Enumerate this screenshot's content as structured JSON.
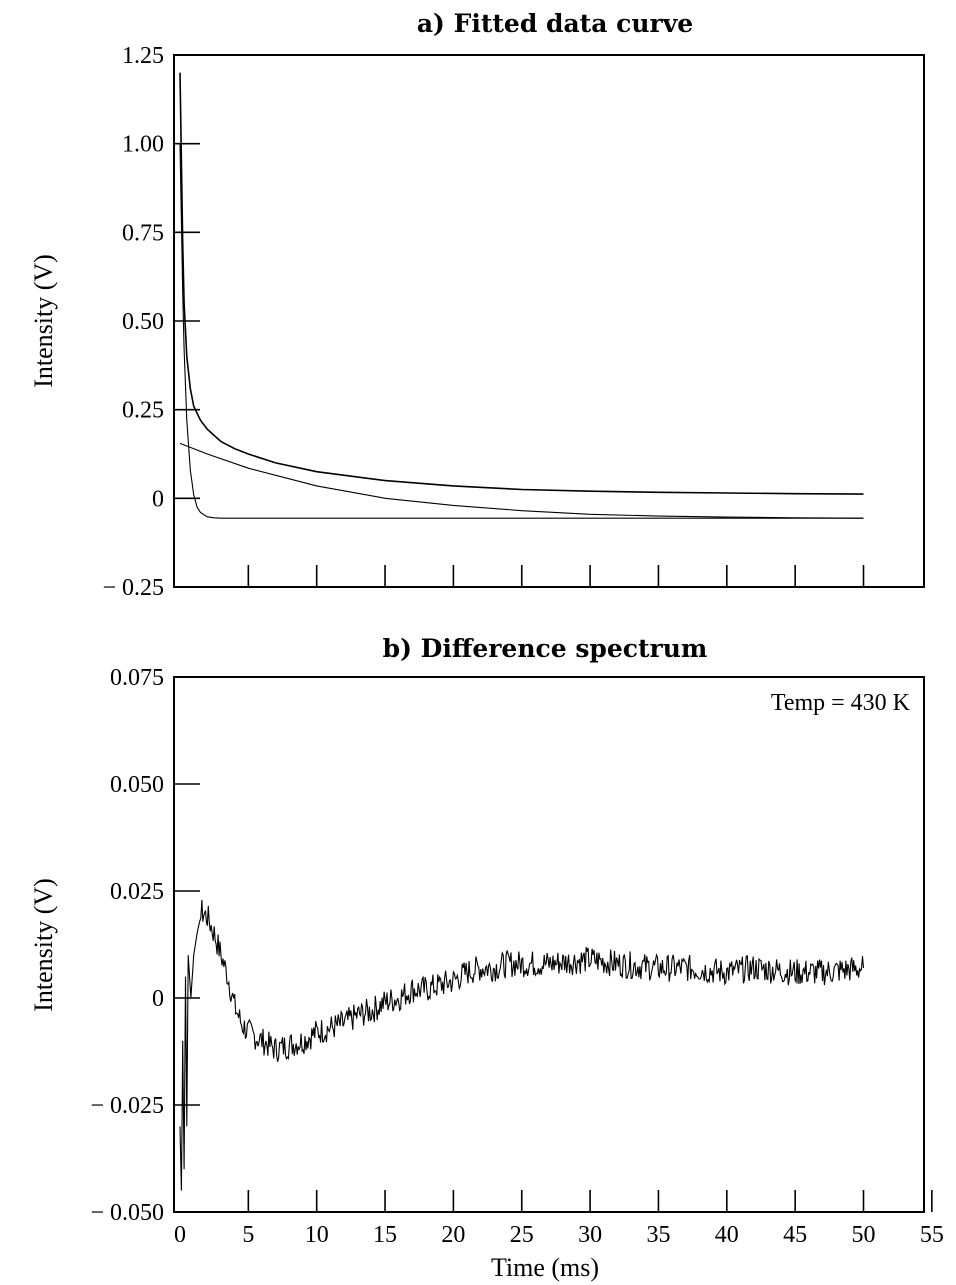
{
  "chart_data": [
    {
      "type": "line",
      "title": "a)  Fitted data curve",
      "xlabel": "",
      "ylabel": "Intensity (V)",
      "xlim": [
        0,
        55
      ],
      "ylim": [
        -0.25,
        1.25
      ],
      "yticks": [
        "1.25",
        "1.00",
        "0.75",
        "0.50",
        "0.25",
        "0",
        "− 0.25"
      ],
      "ytick_values": [
        1.25,
        1.0,
        0.75,
        0.5,
        0.25,
        0,
        -0.25
      ],
      "xticks": [
        5,
        10,
        15,
        20,
        25,
        30,
        35,
        40,
        45,
        50
      ],
      "grid": false,
      "legend": "none",
      "series": [
        {
          "x": [
            0,
            0.1,
            0.2,
            0.3,
            0.5,
            0.75,
            1,
            1.5,
            2,
            3,
            4,
            5,
            7,
            10,
            15,
            20,
            25,
            30,
            35,
            40,
            45,
            50
          ],
          "values": [
            1.2,
            0.95,
            0.72,
            0.55,
            0.4,
            0.31,
            0.26,
            0.22,
            0.195,
            0.16,
            0.14,
            0.125,
            0.1,
            0.075,
            0.05,
            0.035,
            0.025,
            0.02,
            0.017,
            0.015,
            0.013,
            0.012
          ]
        },
        {
          "x": [
            0,
            0.1,
            0.2,
            0.3,
            0.5,
            0.75,
            1,
            1.25,
            1.5,
            2,
            2.5,
            3,
            5,
            10,
            20,
            30,
            40,
            50
          ],
          "values": [
            1.0,
            0.78,
            0.58,
            0.42,
            0.22,
            0.08,
            0.01,
            -0.025,
            -0.04,
            -0.052,
            -0.055,
            -0.056,
            -0.056,
            -0.056,
            -0.056,
            -0.056,
            -0.056,
            -0.056
          ]
        },
        {
          "x": [
            0,
            2,
            5,
            10,
            15,
            20,
            25,
            30,
            35,
            40,
            45,
            50
          ],
          "values": [
            0.155,
            0.125,
            0.085,
            0.035,
            0.0,
            -0.02,
            -0.035,
            -0.045,
            -0.05,
            -0.053,
            -0.055,
            -0.056
          ]
        }
      ]
    },
    {
      "type": "line",
      "title": "b)  Difference spectrum",
      "xlabel": "Time (ms)",
      "ylabel": "Intensity (V)",
      "xlim": [
        0,
        55
      ],
      "ylim": [
        -0.05,
        0.075
      ],
      "yticks": [
        "0.075",
        "0.050",
        "0.025",
        "0",
        "− 0.025",
        "− 0.050"
      ],
      "ytick_values": [
        0.075,
        0.05,
        0.025,
        0,
        -0.025,
        -0.05
      ],
      "xticks": [
        "0",
        "5",
        "10",
        "15",
        "20",
        "25",
        "30",
        "35",
        "40",
        "45",
        "50",
        "55"
      ],
      "xtick_values": [
        0,
        5,
        10,
        15,
        20,
        25,
        30,
        35,
        40,
        45,
        50,
        55
      ],
      "grid": false,
      "legend": "none",
      "annotation": "Temp = 430 K",
      "series": [
        {
          "x": [
            0,
            0.1,
            0.2,
            0.3,
            0.4,
            0.5,
            0.6,
            0.8,
            1.0,
            1.3,
            1.6,
            2.0,
            2.5,
            3.0,
            3.5,
            4.0,
            4.5,
            5.0,
            6.0,
            7.0,
            8.0,
            9.0,
            10.0,
            11.0,
            12.0,
            13.0,
            14.0,
            15.0,
            16.0,
            17.0,
            18.0,
            19.0,
            20.0,
            21.0,
            22.0,
            23.0,
            24.0,
            25.0,
            27.0,
            30.0,
            32.0,
            35.0,
            37.0,
            40.0,
            42.0,
            45.0,
            47.0,
            50.0
          ],
          "values": [
            -0.03,
            -0.045,
            -0.01,
            -0.04,
            0.005,
            -0.03,
            0.01,
            0.0,
            0.01,
            0.016,
            0.02,
            0.019,
            0.015,
            0.01,
            0.005,
            -0.002,
            -0.006,
            -0.008,
            -0.01,
            -0.012,
            -0.011,
            -0.01,
            -0.008,
            -0.007,
            -0.006,
            -0.004,
            -0.003,
            -0.001,
            0.0,
            0.002,
            0.002,
            0.003,
            0.004,
            0.006,
            0.007,
            0.007,
            0.008,
            0.008,
            0.008,
            0.009,
            0.008,
            0.007,
            0.007,
            0.006,
            0.007,
            0.006,
            0.006,
            0.007
          ]
        }
      ]
    }
  ]
}
